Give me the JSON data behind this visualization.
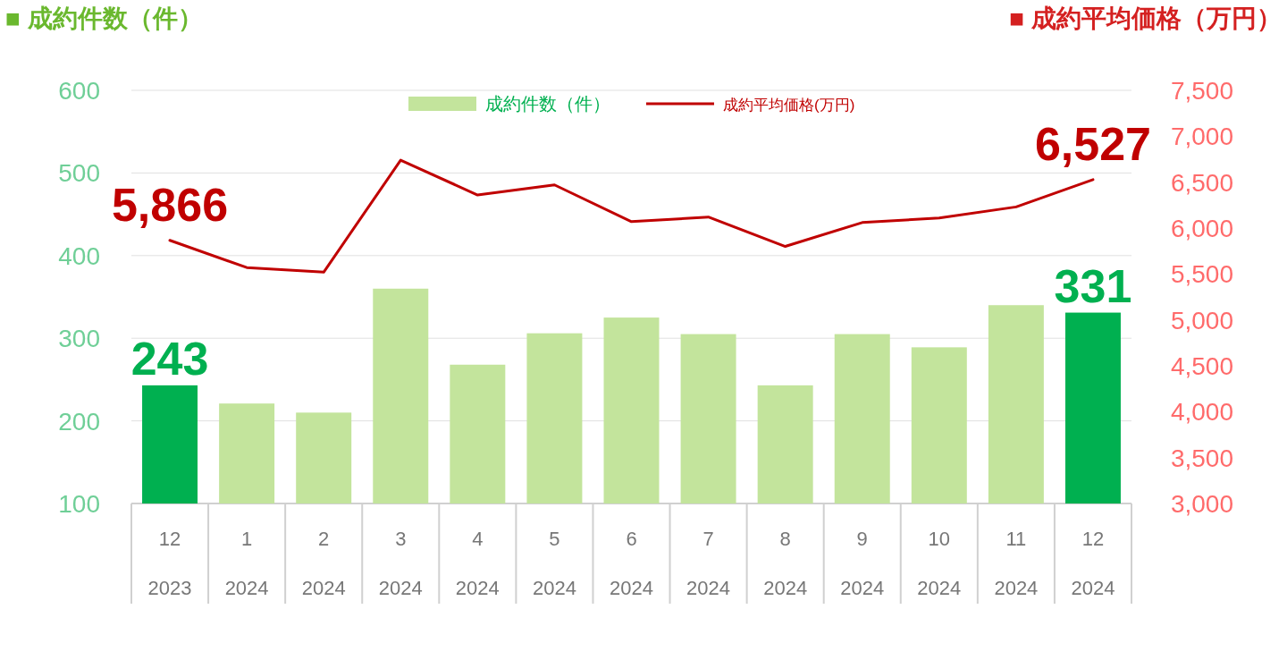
{
  "chart_data": {
    "type": "bar",
    "categories": [
      "12\n2023",
      "1\n2024",
      "2\n2024",
      "3\n2024",
      "4\n2024",
      "5\n2024",
      "6\n2024",
      "7\n2024",
      "8\n2024",
      "9\n2024",
      "10\n2024",
      "11\n2024",
      "12\n2024"
    ],
    "ylabel": "■ 成約件数（件）",
    "y2label": "■ 成約平均価格（万円）",
    "series": [
      {
        "name": "成約件数（件）",
        "color": "#c3e49c",
        "colors": [
          "#00b050",
          "#c3e49c",
          "#c3e49c",
          "#c3e49c",
          "#c3e49c",
          "#c3e49c",
          "#c3e49c",
          "#c3e49c",
          "#c3e49c",
          "#c3e49c",
          "#c3e49c",
          "#c3e49c",
          "#00b050"
        ],
        "values": [
          243,
          221,
          210,
          360,
          268,
          306,
          325,
          305,
          243,
          305,
          289,
          340,
          331
        ],
        "value_labels": [
          "243",
          null,
          null,
          null,
          null,
          null,
          null,
          null,
          null,
          null,
          null,
          null,
          "331"
        ]
      },
      {
        "name": "成約平均価格(万円)",
        "type": "line",
        "axis": "y2",
        "color": "#c00000",
        "values": [
          5866,
          5570,
          5520,
          6740,
          6360,
          6470,
          6070,
          6120,
          5800,
          6060,
          6110,
          6230,
          6527
        ],
        "value_labels": [
          "5,866",
          null,
          null,
          null,
          null,
          null,
          null,
          null,
          null,
          null,
          null,
          null,
          "6,527"
        ]
      }
    ],
    "ylim": [
      100,
      600
    ],
    "yticks": [
      100,
      200,
      300,
      400,
      500,
      600
    ],
    "y2lim": [
      3000,
      7500
    ],
    "y2ticks": [
      {
        "value": 3000,
        "label": "3,000"
      },
      {
        "value": 3500,
        "label": "3,500"
      },
      {
        "value": 4000,
        "label": "4,000"
      },
      {
        "value": 4500,
        "label": "4,500"
      },
      {
        "value": 5000,
        "label": "5,000"
      },
      {
        "value": 5500,
        "label": "5,500"
      },
      {
        "value": 6000,
        "label": "6,000"
      },
      {
        "value": 6500,
        "label": "6,500"
      },
      {
        "value": 7000,
        "label": "7,000"
      },
      {
        "value": 7500,
        "label": "7,500"
      }
    ],
    "grid": "y",
    "legend": "top",
    "marker": "none",
    "line_style": "solid"
  }
}
